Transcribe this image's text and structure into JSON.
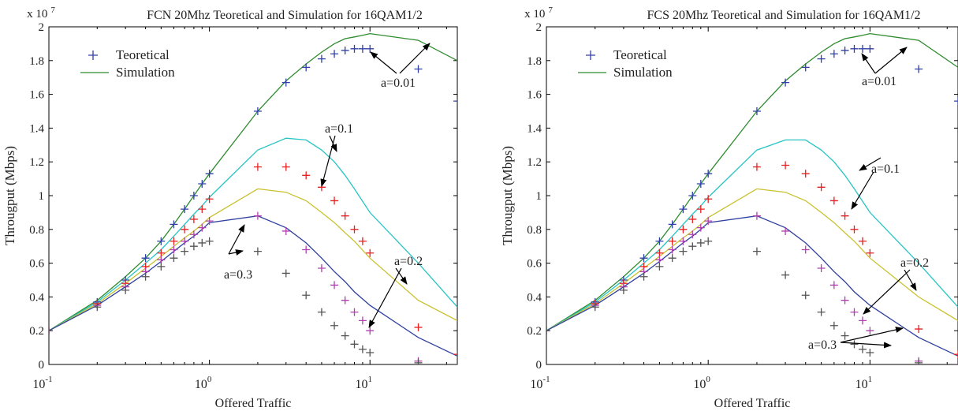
{
  "colors": {
    "a001": "#2e8b2e",
    "a01": "#27c4c4",
    "a02": "#c9c12e",
    "a03": "#2e3f9e",
    "teo_a001": "#3040a8",
    "teo_a01": "#e82020",
    "teo_a02": "#b040b0",
    "teo_a03": "#555555",
    "axis": "#000000",
    "annot": "#000000"
  },
  "chart_data": [
    {
      "type": "line",
      "title": "FCN 20Mhz Teoretical and Simulation for 16QAM1/2",
      "xlabel": "Offered Traffic",
      "ylabel": "Througput (Mbps)",
      "xscale": "log",
      "xlim": [
        0.1,
        35
      ],
      "ylim": [
        0,
        2
      ],
      "y_multiplier": "x 10",
      "y_exponent": "7",
      "xticks": [
        {
          "base": "10",
          "exp": "-1"
        },
        {
          "base": "10",
          "exp": "0"
        },
        {
          "base": "10",
          "exp": "1"
        }
      ],
      "yticks": [
        "0",
        "0.2",
        "0.4",
        "0.6",
        "0.8",
        "1",
        "1.2",
        "1.4",
        "1.6",
        "1.8",
        "2"
      ],
      "legend": {
        "position": "top-left",
        "entries": [
          "Teoretical",
          "Simulation"
        ]
      },
      "annotations": [
        "a=0.01",
        "a=0.1",
        "a=0.2",
        "a=0.3"
      ],
      "series": [
        {
          "name": "Simulation",
          "a": "0.01",
          "color_key": "a001",
          "kind": "line",
          "x": [
            0.1,
            0.2,
            0.3,
            0.4,
            0.5,
            0.6,
            0.7,
            0.8,
            0.9,
            1,
            2,
            3,
            4,
            5,
            6,
            7,
            8,
            9,
            10,
            20,
            35
          ],
          "y": [
            0.2,
            0.38,
            0.52,
            0.63,
            0.73,
            0.83,
            0.92,
            1.0,
            1.07,
            1.13,
            1.5,
            1.68,
            1.78,
            1.85,
            1.9,
            1.93,
            1.94,
            1.95,
            1.96,
            1.92,
            1.8
          ]
        },
        {
          "name": "Simulation",
          "a": "0.1",
          "color_key": "a01",
          "kind": "line",
          "x": [
            0.1,
            0.2,
            0.3,
            0.4,
            0.5,
            0.6,
            0.7,
            0.8,
            0.9,
            1,
            2,
            3,
            4,
            5,
            6,
            7,
            8,
            10,
            20,
            35
          ],
          "y": [
            0.2,
            0.37,
            0.5,
            0.6,
            0.68,
            0.76,
            0.83,
            0.89,
            0.94,
            0.99,
            1.27,
            1.34,
            1.33,
            1.27,
            1.2,
            1.12,
            1.04,
            0.9,
            0.6,
            0.34
          ]
        },
        {
          "name": "Simulation",
          "a": "0.2",
          "color_key": "a02",
          "kind": "line",
          "x": [
            0.1,
            0.2,
            0.3,
            0.4,
            0.5,
            0.6,
            0.7,
            0.8,
            0.9,
            1,
            2,
            3,
            4,
            5,
            6,
            7,
            8,
            10,
            20,
            35
          ],
          "y": [
            0.2,
            0.36,
            0.48,
            0.57,
            0.64,
            0.7,
            0.75,
            0.79,
            0.83,
            0.87,
            1.04,
            1.02,
            0.97,
            0.9,
            0.84,
            0.78,
            0.73,
            0.63,
            0.38,
            0.26
          ]
        },
        {
          "name": "Simulation",
          "a": "0.3",
          "color_key": "a03",
          "kind": "line",
          "x": [
            0.1,
            0.2,
            0.3,
            0.4,
            0.5,
            0.6,
            0.7,
            0.8,
            0.9,
            1,
            2,
            3,
            4,
            5,
            6,
            7,
            8,
            10,
            20,
            35
          ],
          "y": [
            0.2,
            0.35,
            0.46,
            0.54,
            0.61,
            0.67,
            0.72,
            0.76,
            0.8,
            0.84,
            0.88,
            0.81,
            0.72,
            0.63,
            0.55,
            0.49,
            0.43,
            0.35,
            0.16,
            0.05
          ]
        },
        {
          "name": "Teoretical",
          "a": "0.01",
          "color_key": "teo_a001",
          "kind": "marker",
          "x": [
            0.1,
            0.2,
            0.3,
            0.4,
            0.5,
            0.6,
            0.7,
            0.8,
            0.9,
            1,
            2,
            3,
            4,
            5,
            6,
            7,
            8,
            9,
            10,
            20,
            35
          ],
          "y": [
            0.2,
            0.37,
            0.5,
            0.63,
            0.73,
            0.83,
            0.92,
            1.0,
            1.07,
            1.13,
            1.5,
            1.67,
            1.76,
            1.81,
            1.84,
            1.86,
            1.87,
            1.87,
            1.87,
            1.75,
            1.56
          ]
        },
        {
          "name": "Teoretical",
          "a": "0.1",
          "color_key": "teo_a01",
          "kind": "marker",
          "x": [
            0.1,
            0.2,
            0.3,
            0.4,
            0.5,
            0.6,
            0.7,
            0.8,
            0.9,
            1,
            2,
            3,
            4,
            5,
            6,
            7,
            8,
            9,
            10,
            20,
            35
          ],
          "y": [
            0.2,
            0.36,
            0.48,
            0.58,
            0.66,
            0.73,
            0.8,
            0.86,
            0.92,
            0.98,
            1.17,
            1.17,
            1.12,
            1.05,
            0.97,
            0.88,
            0.8,
            0.73,
            0.66,
            0.22,
            0.06
          ]
        },
        {
          "name": "Teoretical",
          "a": "0.2",
          "color_key": "teo_a02",
          "kind": "marker",
          "x": [
            0.1,
            0.2,
            0.3,
            0.4,
            0.5,
            0.6,
            0.7,
            0.8,
            0.9,
            1,
            2,
            3,
            4,
            5,
            6,
            7,
            8,
            9,
            10,
            20,
            35
          ],
          "y": [
            0.2,
            0.35,
            0.46,
            0.55,
            0.62,
            0.68,
            0.73,
            0.77,
            0.81,
            0.85,
            0.88,
            0.79,
            0.68,
            0.57,
            0.47,
            0.38,
            0.31,
            0.26,
            0.2,
            0.02,
            0.0
          ]
        },
        {
          "name": "Teoretical",
          "a": "0.3",
          "color_key": "teo_a03",
          "kind": "marker",
          "x": [
            0.1,
            0.2,
            0.3,
            0.4,
            0.5,
            0.6,
            0.7,
            0.8,
            0.9,
            1,
            2,
            3,
            4,
            5,
            6,
            7,
            8,
            9,
            10,
            20,
            35
          ],
          "y": [
            0.2,
            0.34,
            0.44,
            0.52,
            0.58,
            0.63,
            0.67,
            0.7,
            0.72,
            0.73,
            0.67,
            0.54,
            0.41,
            0.31,
            0.23,
            0.17,
            0.12,
            0.09,
            0.07,
            0.01,
            0.0
          ]
        }
      ]
    },
    {
      "type": "line",
      "title": "FCS 20Mhz Teoretical and Simulation for 16QAM1/2",
      "xlabel": "Offered Traffic",
      "ylabel": "Througput (Mbps)",
      "xscale": "log",
      "xlim": [
        0.1,
        35
      ],
      "ylim": [
        0,
        2
      ],
      "y_multiplier": "x 10",
      "y_exponent": "7",
      "xticks": [
        {
          "base": "10",
          "exp": "-1"
        },
        {
          "base": "10",
          "exp": "0"
        },
        {
          "base": "10",
          "exp": "1"
        }
      ],
      "yticks": [
        "0",
        "0.2",
        "0.4",
        "0.6",
        "0.8",
        "1",
        "1.2",
        "1.4",
        "1.6",
        "1.8",
        "2"
      ],
      "legend": {
        "position": "top-left",
        "entries": [
          "Teoretical",
          "Simulation"
        ]
      },
      "annotations": [
        "a=0.01",
        "a=0.1",
        "a=0.2",
        "a=0.3"
      ],
      "series": [
        {
          "name": "Simulation",
          "a": "0.01",
          "color_key": "a001",
          "kind": "line",
          "x": [
            0.1,
            0.2,
            0.3,
            0.4,
            0.5,
            0.6,
            0.7,
            0.8,
            0.9,
            1,
            2,
            3,
            4,
            5,
            6,
            7,
            8,
            9,
            10,
            20,
            35
          ],
          "y": [
            0.2,
            0.38,
            0.52,
            0.63,
            0.73,
            0.83,
            0.92,
            1.0,
            1.07,
            1.13,
            1.5,
            1.68,
            1.78,
            1.85,
            1.9,
            1.93,
            1.94,
            1.95,
            1.96,
            1.92,
            1.76
          ]
        },
        {
          "name": "Simulation",
          "a": "0.1",
          "color_key": "a01",
          "kind": "line",
          "x": [
            0.1,
            0.2,
            0.3,
            0.4,
            0.5,
            0.6,
            0.7,
            0.8,
            0.9,
            1,
            2,
            3,
            4,
            5,
            6,
            7,
            8,
            10,
            20,
            35
          ],
          "y": [
            0.2,
            0.37,
            0.5,
            0.6,
            0.68,
            0.76,
            0.83,
            0.89,
            0.94,
            0.99,
            1.27,
            1.33,
            1.33,
            1.27,
            1.2,
            1.12,
            1.04,
            0.9,
            0.6,
            0.34
          ]
        },
        {
          "name": "Simulation",
          "a": "0.2",
          "color_key": "a02",
          "kind": "line",
          "x": [
            0.1,
            0.2,
            0.3,
            0.4,
            0.5,
            0.6,
            0.7,
            0.8,
            0.9,
            1,
            2,
            3,
            4,
            5,
            6,
            7,
            8,
            10,
            20,
            35
          ],
          "y": [
            0.2,
            0.36,
            0.48,
            0.57,
            0.64,
            0.7,
            0.75,
            0.79,
            0.83,
            0.87,
            1.04,
            1.02,
            0.97,
            0.9,
            0.84,
            0.78,
            0.73,
            0.63,
            0.4,
            0.26
          ]
        },
        {
          "name": "Simulation",
          "a": "0.3",
          "color_key": "a03",
          "kind": "line",
          "x": [
            0.1,
            0.2,
            0.3,
            0.4,
            0.5,
            0.6,
            0.7,
            0.8,
            0.9,
            1,
            2,
            3,
            4,
            5,
            6,
            7,
            8,
            10,
            20,
            35
          ],
          "y": [
            0.2,
            0.35,
            0.46,
            0.54,
            0.61,
            0.67,
            0.72,
            0.76,
            0.8,
            0.84,
            0.88,
            0.81,
            0.72,
            0.63,
            0.55,
            0.49,
            0.43,
            0.35,
            0.16,
            0.05
          ]
        },
        {
          "name": "Teoretical",
          "a": "0.01",
          "color_key": "teo_a001",
          "kind": "marker",
          "x": [
            0.1,
            0.2,
            0.3,
            0.4,
            0.5,
            0.6,
            0.7,
            0.8,
            0.9,
            1,
            2,
            3,
            4,
            5,
            6,
            7,
            8,
            9,
            10,
            20,
            35
          ],
          "y": [
            0.2,
            0.37,
            0.5,
            0.63,
            0.73,
            0.83,
            0.92,
            1.0,
            1.07,
            1.13,
            1.5,
            1.67,
            1.76,
            1.81,
            1.84,
            1.86,
            1.87,
            1.87,
            1.87,
            1.75,
            1.56
          ]
        },
        {
          "name": "Teoretical",
          "a": "0.1",
          "color_key": "teo_a01",
          "kind": "marker",
          "x": [
            0.1,
            0.2,
            0.3,
            0.4,
            0.5,
            0.6,
            0.7,
            0.8,
            0.9,
            1,
            2,
            3,
            4,
            5,
            6,
            7,
            8,
            9,
            10,
            20,
            35
          ],
          "y": [
            0.2,
            0.36,
            0.48,
            0.58,
            0.66,
            0.73,
            0.8,
            0.86,
            0.92,
            0.98,
            1.17,
            1.18,
            1.13,
            1.05,
            0.97,
            0.88,
            0.8,
            0.73,
            0.66,
            0.21,
            0.06
          ]
        },
        {
          "name": "Teoretical",
          "a": "0.2",
          "color_key": "teo_a02",
          "kind": "marker",
          "x": [
            0.1,
            0.2,
            0.3,
            0.4,
            0.5,
            0.6,
            0.7,
            0.8,
            0.9,
            1,
            2,
            3,
            4,
            5,
            6,
            7,
            8,
            9,
            10,
            20,
            35
          ],
          "y": [
            0.2,
            0.35,
            0.46,
            0.55,
            0.62,
            0.68,
            0.73,
            0.77,
            0.81,
            0.85,
            0.88,
            0.79,
            0.68,
            0.57,
            0.47,
            0.38,
            0.31,
            0.26,
            0.2,
            0.02,
            0.0
          ]
        },
        {
          "name": "Teoretical",
          "a": "0.3",
          "color_key": "teo_a03",
          "kind": "marker",
          "x": [
            0.1,
            0.2,
            0.3,
            0.4,
            0.5,
            0.6,
            0.7,
            0.8,
            0.9,
            1,
            2,
            3,
            4,
            5,
            6,
            7,
            8,
            9,
            10,
            20,
            35
          ],
          "y": [
            0.2,
            0.34,
            0.44,
            0.52,
            0.58,
            0.63,
            0.67,
            0.7,
            0.72,
            0.73,
            0.67,
            0.53,
            0.41,
            0.31,
            0.23,
            0.17,
            0.12,
            0.09,
            0.07,
            0.01,
            0.0
          ]
        }
      ]
    }
  ]
}
